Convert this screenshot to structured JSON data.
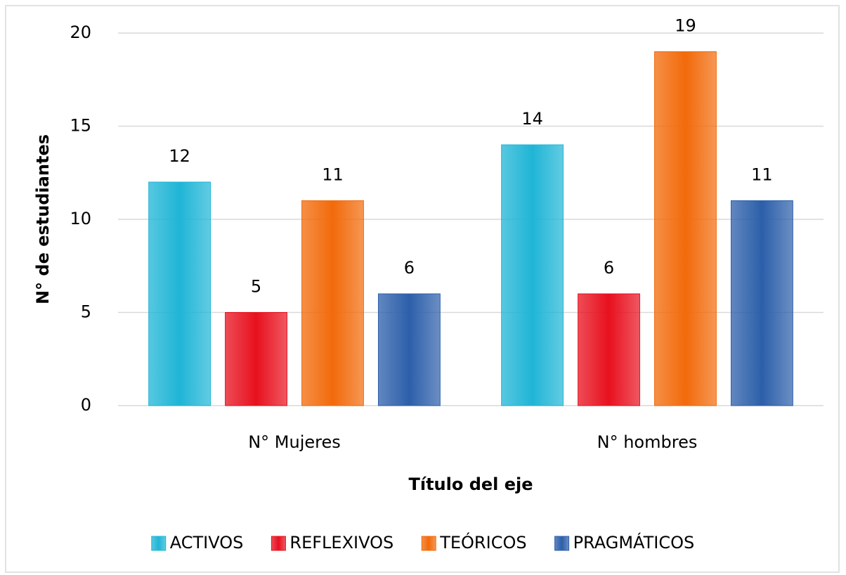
{
  "chart_data": {
    "type": "bar",
    "categories": [
      "N° Mujeres",
      "N° hombres"
    ],
    "series": [
      {
        "name": "ACTIVOS",
        "color": "#1fb5d6",
        "values": [
          12,
          14
        ]
      },
      {
        "name": "REFLEXIVOS",
        "color": "#e8101e",
        "values": [
          5,
          6
        ]
      },
      {
        "name": "TEÓRICOS",
        "color": "#f26a0a",
        "values": [
          11,
          19
        ]
      },
      {
        "name": "PRAGMÁTICOS",
        "color": "#2c5faa",
        "values": [
          6,
          11
        ]
      }
    ],
    "ylabel": "N° de estudiantes",
    "xlabel": "Título del eje",
    "ylim": [
      0,
      20
    ],
    "yticks": [
      0,
      5,
      10,
      15,
      20
    ],
    "grid": true,
    "legend": "bottom"
  }
}
